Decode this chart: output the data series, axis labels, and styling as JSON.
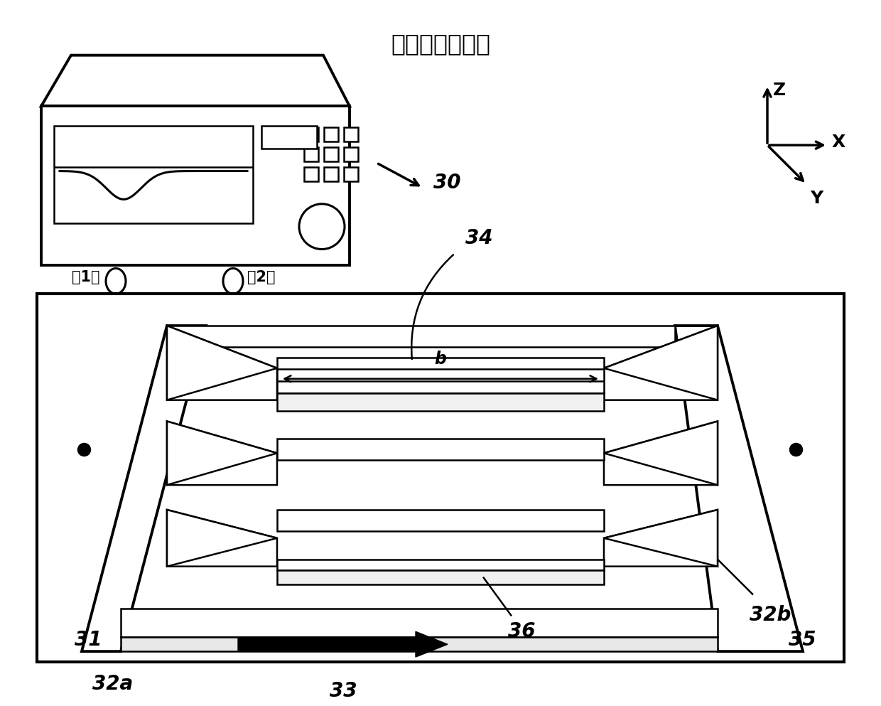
{
  "title": "向量网络分析仪",
  "title_fontsize": 24,
  "bg_color": "#ffffff",
  "line_color": "#000000",
  "lw_main": 2.8,
  "lw_thin": 1.8,
  "label_30": "30",
  "label_31": "31",
  "label_32a": "32a",
  "label_32b": "32b",
  "label_33": "33",
  "label_34": "34",
  "label_35": "35",
  "label_36": "36",
  "label_b": "b",
  "label_port1": "第1端",
  "label_port2": "第2端",
  "label_x": "X",
  "label_y": "Y",
  "label_z": "Z"
}
